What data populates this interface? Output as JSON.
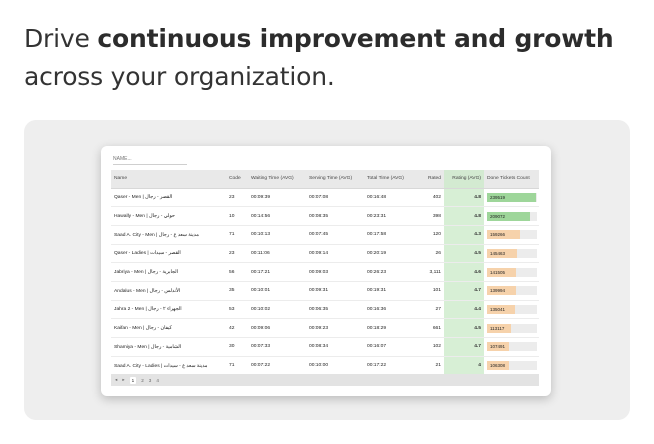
{
  "headline": {
    "part1": "Drive ",
    "bold": "continuous improvement and growth",
    "part2": " across your organization."
  },
  "filter": {
    "placeholder": "NAME..."
  },
  "table": {
    "columns": [
      "Name",
      "Code",
      "Waiting Time (AVG)",
      "Serving Time (AVG)",
      "Total Time (AVG)",
      "Rated",
      "Rating (AVG)",
      "Done Tickets Count"
    ],
    "rows": [
      {
        "name": "Qaser - Men | القصر - رجال",
        "code": "23",
        "wait": "00:09:39",
        "serve": "00:07:08",
        "total": "00:16:48",
        "rated": "402",
        "rating": "4.8",
        "done": "239519",
        "done_fraction": 0.98,
        "bar_color": "#9ed69a"
      },
      {
        "name": "Hawally - Men | حولي - رجال",
        "code": "10",
        "wait": "00:14:56",
        "serve": "00:08:35",
        "total": "00:23:31",
        "rated": "398",
        "rating": "4.8",
        "done": "209072",
        "done_fraction": 0.86,
        "bar_color": "#9ed69a"
      },
      {
        "name": "Saad A. City - Men | مدينة سعد ع - رجال",
        "code": "71",
        "wait": "00:10:13",
        "serve": "00:07:45",
        "total": "00:17:58",
        "rated": "120",
        "rating": "4.3",
        "done": "159266",
        "done_fraction": 0.66,
        "bar_color": "#f6d2ab"
      },
      {
        "name": "Qaser - Ladies | القصر - سيدات",
        "code": "23",
        "wait": "00:11:06",
        "serve": "00:09:14",
        "total": "00:20:19",
        "rated": "26",
        "rating": "4.5",
        "done": "145463",
        "done_fraction": 0.6,
        "bar_color": "#f6d2ab"
      },
      {
        "name": "Jabriya - Men | الجابرية - رجال",
        "code": "56",
        "wait": "00:17:21",
        "serve": "00:09:03",
        "total": "00:26:23",
        "rated": "3,111",
        "rating": "4.6",
        "done": "141505",
        "done_fraction": 0.58,
        "bar_color": "#f6d2ab"
      },
      {
        "name": "Andalus - Men | الأندلس - رجال",
        "code": "35",
        "wait": "00:10:01",
        "serve": "00:09:31",
        "total": "00:19:31",
        "rated": "101",
        "rating": "4.7",
        "done": "139994",
        "done_fraction": 0.58,
        "bar_color": "#f6d2ab"
      },
      {
        "name": "Jahra 2 - Men | الجهراء ٢ - رجال",
        "code": "53",
        "wait": "00:10:02",
        "serve": "00:06:35",
        "total": "00:16:36",
        "rated": "27",
        "rating": "4.4",
        "done": "135041",
        "done_fraction": 0.56,
        "bar_color": "#f6d2ab"
      },
      {
        "name": "Kaifan - Men | كيفان - رجال",
        "code": "42",
        "wait": "00:09:06",
        "serve": "00:09:23",
        "total": "00:18:29",
        "rated": "661",
        "rating": "4.5",
        "done": "113117",
        "done_fraction": 0.47,
        "bar_color": "#f6d2ab"
      },
      {
        "name": "Shamiya - Men | الشامية - رجال",
        "code": "30",
        "wait": "00:07:33",
        "serve": "00:08:34",
        "total": "00:16:07",
        "rated": "102",
        "rating": "4.7",
        "done": "107491",
        "done_fraction": 0.44,
        "bar_color": "#f6d2ab"
      },
      {
        "name": "Saad A. City - Ladies | مدينة سعد ع - سيدات",
        "code": "71",
        "wait": "00:07:22",
        "serve": "00:10:00",
        "total": "00:17:22",
        "rated": "21",
        "rating": "4",
        "done": "106308",
        "done_fraction": 0.44,
        "bar_color": "#f6d2ab"
      }
    ]
  },
  "pager": {
    "prev": "◂",
    "next": "▸",
    "pages": [
      "1",
      "2",
      "3",
      "4"
    ],
    "active": "1"
  }
}
